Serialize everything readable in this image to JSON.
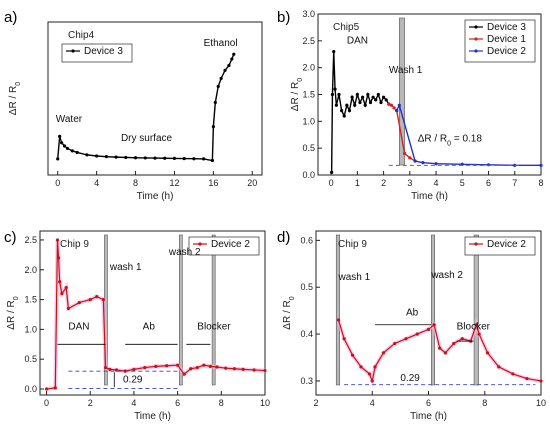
{
  "chart_data": [
    {
      "panel": "a)",
      "type": "line",
      "title": "Chip4",
      "xlabel": "Time (h)",
      "ylabel": "ΔR / R",
      "ylabel_sub": "0",
      "xlim": [
        -1,
        21
      ],
      "ylim": [
        -0.1,
        0.85
      ],
      "xticks": [
        0,
        4,
        8,
        12,
        16,
        20
      ],
      "yticks": [],
      "grid": false,
      "legend": "top-left",
      "series": [
        {
          "name": "Device 3",
          "color": "#000000",
          "x": [
            0.0,
            0.2,
            0.4,
            0.7,
            1,
            1.5,
            2,
            3,
            4,
            5,
            6,
            7,
            8,
            9,
            10,
            11,
            12,
            13,
            14,
            15,
            15.9,
            16.0,
            16.2,
            16.5,
            16.8,
            17.2,
            17.6,
            17.9,
            18.1
          ],
          "y": [
            0.0,
            0.14,
            0.1,
            0.08,
            0.065,
            0.05,
            0.04,
            0.025,
            0.018,
            0.014,
            0.011,
            0.009,
            0.007,
            0.006,
            0.005,
            0.004,
            0.003,
            0.002,
            0.001,
            0.0,
            -0.01,
            0.2,
            0.35,
            0.45,
            0.5,
            0.55,
            0.58,
            0.62,
            0.65
          ]
        }
      ],
      "annotations": [
        {
          "text": "Water",
          "x": -0.2,
          "y": 0.23
        },
        {
          "text": "Dry surface",
          "x": 6.5,
          "y": 0.11
        },
        {
          "text": "Ethanol",
          "x": 15.0,
          "y": 0.7
        }
      ]
    },
    {
      "panel": "b)",
      "type": "line",
      "title": "Chip5",
      "xlabel": "Time (h)",
      "ylabel": "ΔR / R",
      "ylabel_sub": "0",
      "xlim": [
        -0.5,
        8
      ],
      "ylim": [
        0.0,
        3.0
      ],
      "xticks": [
        0,
        1,
        2,
        3,
        4,
        5,
        6,
        7,
        8
      ],
      "yticks": [
        0.0,
        0.5,
        1.0,
        1.5,
        2.0,
        2.5,
        3.0
      ],
      "grid": false,
      "legend": "top-right",
      "series": [
        {
          "name": "Device 3",
          "color": "#000000",
          "x": [
            0.02,
            0.05,
            0.1,
            0.15,
            0.2,
            0.3,
            0.4,
            0.5,
            0.6,
            0.7,
            0.8,
            0.9,
            1.0,
            1.1,
            1.2,
            1.3,
            1.4,
            1.5,
            1.6,
            1.7,
            1.8,
            1.9,
            2.0,
            2.1,
            2.2
          ],
          "y": [
            0.05,
            1.5,
            2.3,
            1.6,
            1.3,
            1.5,
            1.2,
            1.1,
            1.3,
            1.2,
            1.45,
            1.3,
            1.5,
            1.35,
            1.45,
            1.3,
            1.5,
            1.35,
            1.45,
            1.4,
            1.5,
            1.35,
            1.45,
            1.4,
            1.32
          ]
        },
        {
          "name": "Device 1",
          "color": "#d92020",
          "x": [
            2.2,
            2.3,
            2.4,
            2.5,
            2.8,
            3.0,
            3.2
          ],
          "y": [
            1.32,
            1.3,
            1.25,
            1.2,
            0.4,
            0.32,
            0.26
          ]
        },
        {
          "name": "Device 2",
          "color": "#2233cc",
          "x": [
            2.5,
            2.6,
            3.2,
            3.5,
            4,
            5,
            6,
            7,
            8
          ],
          "y": [
            1.2,
            1.3,
            0.26,
            0.23,
            0.21,
            0.2,
            0.19,
            0.18,
            0.18
          ]
        }
      ],
      "annotations": [
        {
          "text": "DAN",
          "x": 0.6,
          "y": 2.45
        },
        {
          "text": "Wash 1",
          "x": 2.2,
          "y": 1.9
        },
        {
          "text": "ΔR / R",
          "text_sub": "0",
          "text_suffix": " = 0.18",
          "x": 3.3,
          "y": 0.62
        }
      ],
      "bands": [
        {
          "x0": 2.6,
          "x1": 2.8
        }
      ]
    },
    {
      "panel": "c)",
      "type": "scatter",
      "title": "Chip 9",
      "xlabel": "Time (h)",
      "ylabel": "ΔR / R",
      "ylabel_sub": "0",
      "xlim": [
        -0.3,
        10
      ],
      "ylim": [
        -0.1,
        2.65
      ],
      "xticks": [
        0,
        2,
        4,
        6,
        8,
        10
      ],
      "yticks": [
        0.0,
        0.5,
        1.0,
        1.5,
        2.0,
        2.5
      ],
      "grid": false,
      "legend": "top-right",
      "series": [
        {
          "name": "Device 2",
          "color": "#cc1111",
          "x": [
            0.0,
            0.4,
            0.5,
            0.55,
            0.6,
            0.7,
            0.9,
            1.0,
            1.5,
            2.0,
            2.3,
            2.6,
            2.7,
            2.9,
            3.2,
            3.6,
            4.0,
            4.5,
            5.0,
            5.5,
            6.0,
            6.3,
            6.6,
            6.9,
            7.2,
            7.5,
            7.8,
            8.2,
            8.6,
            9.0,
            9.5,
            10.0
          ],
          "y": [
            0.0,
            0.02,
            2.5,
            2.2,
            1.8,
            1.6,
            1.7,
            1.35,
            1.45,
            1.5,
            1.55,
            1.5,
            0.36,
            0.33,
            0.32,
            0.3,
            0.33,
            0.36,
            0.38,
            0.39,
            0.4,
            0.25,
            0.34,
            0.36,
            0.4,
            0.38,
            0.37,
            0.35,
            0.34,
            0.33,
            0.32,
            0.31
          ]
        }
      ],
      "annotations": [
        {
          "text": "DAN",
          "x": 1.0,
          "y": 1.0
        },
        {
          "text": "wash 1",
          "x": 2.9,
          "y": 2.0
        },
        {
          "text": "Ab",
          "x": 4.4,
          "y": 1.0
        },
        {
          "text": "wash 2",
          "x": 5.6,
          "y": 2.25
        },
        {
          "text": "Blocker",
          "x": 6.9,
          "y": 1.0
        },
        {
          "text": "0.29",
          "x": 3.5,
          "y": 0.11
        }
      ],
      "bands": [
        {
          "x0": 2.65,
          "x1": 2.78
        },
        {
          "x0": 6.08,
          "x1": 6.2
        },
        {
          "x0": 7.58,
          "x1": 7.72
        }
      ]
    },
    {
      "panel": "d)",
      "type": "scatter",
      "title": "Chip 9",
      "xlabel": "Time (h)",
      "ylabel": "ΔR / R",
      "ylabel_sub": "0",
      "xlim": [
        2,
        10
      ],
      "ylim": [
        0.27,
        0.62
      ],
      "xticks": [
        2,
        4,
        6,
        8,
        10
      ],
      "yticks": [
        0.3,
        0.4,
        0.5,
        0.6
      ],
      "grid": false,
      "legend": "top-right",
      "series": [
        {
          "name": "Device 2",
          "color": "#cc1111",
          "x": [
            2.8,
            3.0,
            3.3,
            3.6,
            3.9,
            4.0,
            4.1,
            4.4,
            4.8,
            5.2,
            5.6,
            6.0,
            6.2,
            6.4,
            6.6,
            6.9,
            7.2,
            7.5,
            7.7,
            7.8,
            8.1,
            8.5,
            9.0,
            9.5,
            10.0
          ],
          "y": [
            0.43,
            0.39,
            0.355,
            0.33,
            0.315,
            0.3,
            0.33,
            0.36,
            0.38,
            0.39,
            0.4,
            0.41,
            0.42,
            0.37,
            0.36,
            0.38,
            0.39,
            0.385,
            0.42,
            0.4,
            0.36,
            0.33,
            0.315,
            0.305,
            0.3
          ]
        }
      ],
      "annotations": [
        {
          "text": "wash 1",
          "x": 2.8,
          "y": 0.515
        },
        {
          "text": "Ab",
          "x": 5.2,
          "y": 0.44
        },
        {
          "text": "wash 2",
          "x": 6.1,
          "y": 0.52
        },
        {
          "text": "Blocker",
          "x": 7.0,
          "y": 0.41
        },
        {
          "text": "0.29",
          "x": 5.0,
          "y": 0.3
        }
      ],
      "bands": [
        {
          "x0": 2.72,
          "x1": 2.84
        },
        {
          "x0": 6.1,
          "x1": 6.22
        },
        {
          "x0": 7.62,
          "x1": 7.78
        }
      ]
    }
  ]
}
